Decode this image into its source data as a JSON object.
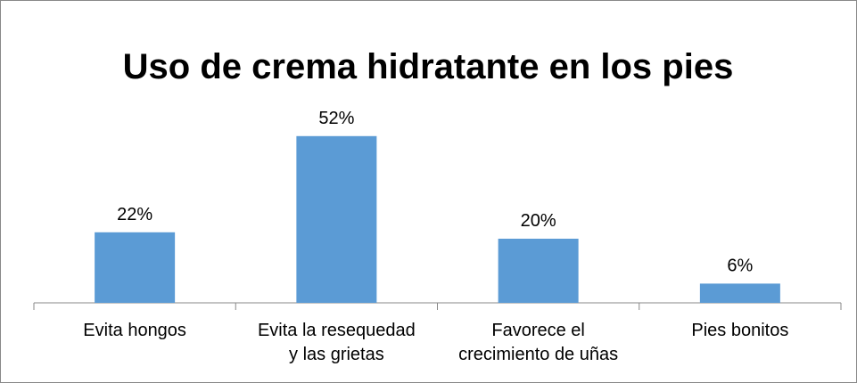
{
  "chart_data": {
    "type": "bar",
    "title": "Uso de crema hidratante en los pies",
    "categories": [
      "Evita hongos",
      "Evita la resequedad y las grietas",
      "Favorece el crecimiento de uñas",
      "Pies bonitos"
    ],
    "values": [
      22,
      52,
      20,
      6
    ],
    "value_labels": [
      "22%",
      "52%",
      "20%",
      "6%"
    ],
    "color": "#5b9bd5"
  }
}
